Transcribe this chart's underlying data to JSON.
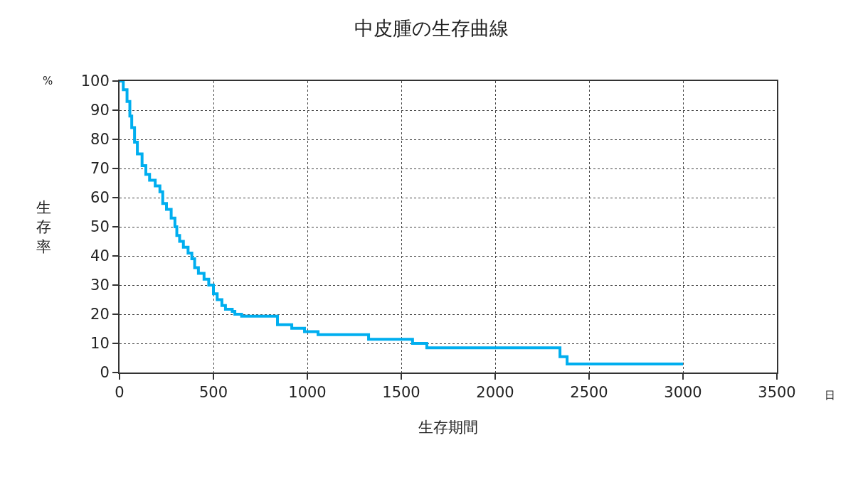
{
  "chart_data": {
    "type": "step",
    "title": "中皮腫の生存曲線",
    "xlabel": "生存期間",
    "ylabel": "生存率",
    "annotations": [
      "%",
      "日"
    ],
    "xlim": [
      0,
      3500
    ],
    "xticks": [
      0,
      500,
      1000,
      1500,
      2000,
      2500,
      3000,
      3500
    ],
    "ylim": [
      0,
      100
    ],
    "yticks": [
      0,
      10,
      20,
      30,
      40,
      50,
      60,
      70,
      80,
      90,
      100
    ],
    "grid": true,
    "line_style": "solid",
    "series": [
      {
        "color": "#00aeef",
        "x": [
          0,
          20,
          40,
          55,
          65,
          80,
          95,
          120,
          140,
          160,
          190,
          215,
          230,
          250,
          275,
          295,
          305,
          320,
          340,
          365,
          385,
          400,
          420,
          450,
          475,
          500,
          520,
          545,
          564,
          600,
          614,
          650,
          700,
          841,
          917,
          985,
          1057,
          1326,
          1560,
          1636,
          2345,
          2383,
          3000
        ],
        "values": [
          100,
          97,
          93,
          88,
          84,
          79,
          75,
          71,
          68,
          66,
          64,
          62,
          58,
          56,
          53,
          50,
          47,
          45,
          43,
          41,
          39,
          36,
          34,
          32,
          30,
          27,
          25,
          23,
          21.7,
          21,
          20,
          19.3,
          19.3,
          16.4,
          15.2,
          14,
          13,
          11.4,
          10,
          8.5,
          5.4,
          2.9,
          2.9
        ]
      }
    ]
  }
}
